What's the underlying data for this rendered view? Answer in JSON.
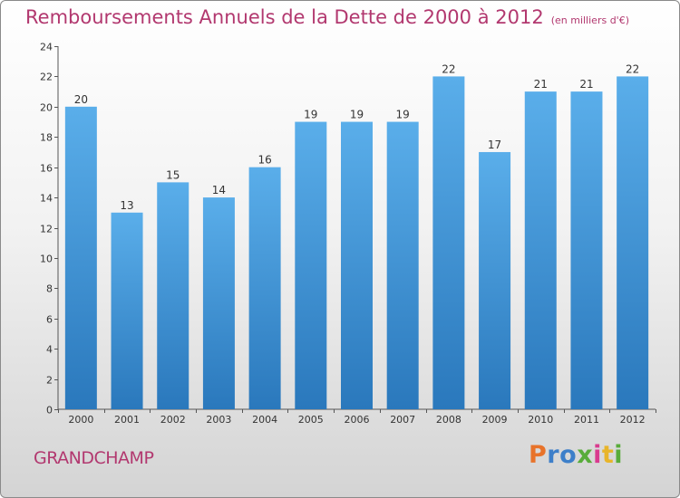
{
  "title": "Remboursements Annuels de la Dette de 2000 à 2012",
  "unit": "(en milliers d'€)",
  "commune": "GRANDCHAMP",
  "logo": {
    "text": "Proxiti",
    "colors": [
      "#e8732a",
      "#3d7fc9",
      "#3d7fc9",
      "#58ac3a",
      "#d93b8f",
      "#e8b52a",
      "#58ac3a"
    ]
  },
  "colors": {
    "bar": "#4aa0e0",
    "bar_dark": "#2b7cc0",
    "title": "#b2386f",
    "axis": "#666666"
  },
  "chart_data": {
    "type": "bar",
    "categories": [
      "2000",
      "2001",
      "2002",
      "2003",
      "2004",
      "2005",
      "2006",
      "2007",
      "2008",
      "2009",
      "2010",
      "2011",
      "2012"
    ],
    "values": [
      20,
      13,
      15,
      14,
      16,
      19,
      19,
      19,
      22,
      17,
      21,
      21,
      22
    ],
    "ylim": [
      0,
      24
    ],
    "yticks": [
      0,
      2,
      4,
      6,
      8,
      10,
      12,
      14,
      16,
      18,
      20,
      22,
      24
    ],
    "grid": false
  }
}
